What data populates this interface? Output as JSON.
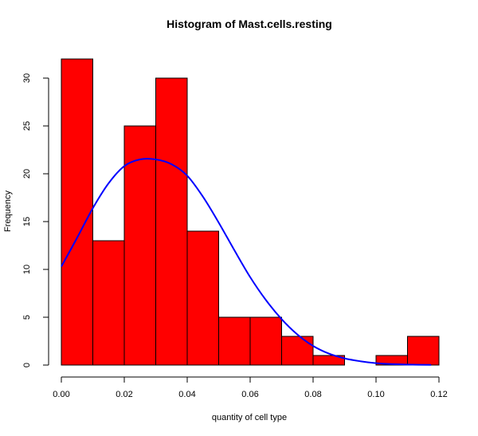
{
  "chart_data": {
    "type": "bar",
    "title": "Histogram of Mast.cells.resting",
    "xlabel": "quantity of cell type",
    "ylabel": "Frequency",
    "bin_edges": [
      0.0,
      0.01,
      0.02,
      0.03,
      0.04,
      0.05,
      0.06,
      0.07,
      0.08,
      0.09,
      0.1,
      0.11,
      0.12
    ],
    "values": [
      32,
      13,
      25,
      30,
      14,
      5,
      5,
      3,
      1,
      0,
      1,
      3
    ],
    "xlim": [
      0.0,
      0.12
    ],
    "ylim": [
      0,
      32
    ],
    "x_ticks": [
      0.0,
      0.02,
      0.04,
      0.06,
      0.08,
      0.1,
      0.12
    ],
    "x_tick_labels": [
      "0.00",
      "0.02",
      "0.04",
      "0.06",
      "0.08",
      "0.10",
      "0.12"
    ],
    "y_ticks": [
      0,
      5,
      10,
      15,
      20,
      25,
      30
    ],
    "y_tick_labels": [
      "0",
      "5",
      "10",
      "15",
      "20",
      "25",
      "30"
    ],
    "bar_fill": "#ff0000",
    "bar_stroke": "#000000",
    "density_curve": {
      "color": "#0000ff",
      "x": [
        0.0,
        0.005,
        0.01,
        0.015,
        0.02,
        0.025,
        0.03,
        0.035,
        0.04,
        0.045,
        0.05,
        0.055,
        0.06,
        0.065,
        0.07,
        0.075,
        0.08,
        0.085,
        0.09,
        0.095,
        0.1,
        0.105,
        0.11,
        0.1175
      ],
      "y": [
        10.3,
        13.3,
        16.4,
        19.0,
        20.8,
        21.5,
        21.5,
        21.0,
        19.8,
        17.6,
        14.9,
        12.0,
        9.2,
        6.8,
        4.8,
        3.2,
        2.0,
        1.2,
        0.7,
        0.4,
        0.2,
        0.1,
        0.05,
        0.02
      ]
    },
    "grid": false,
    "legend": "none"
  }
}
